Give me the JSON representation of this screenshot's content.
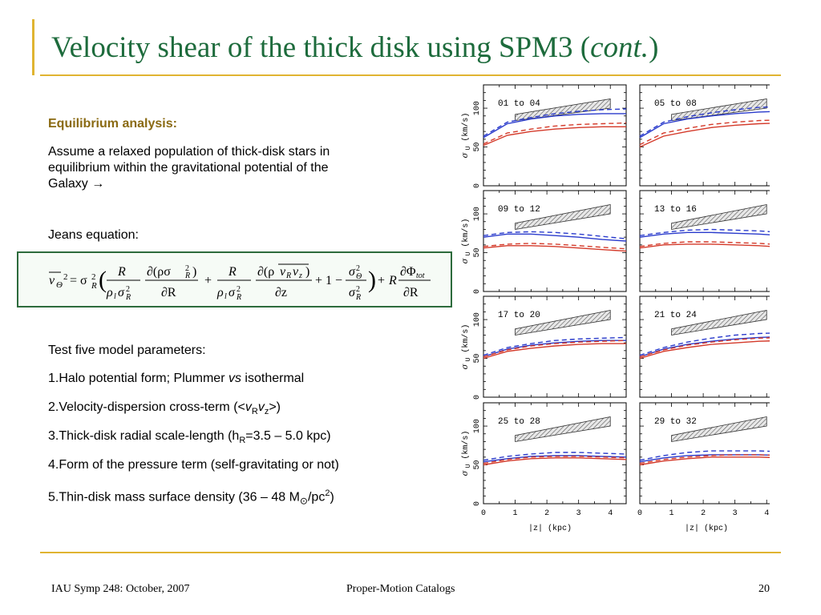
{
  "slide": {
    "title_main": "Velocity shear of the thick disk using SPM3 (",
    "title_italic": "cont.",
    "title_close": ")"
  },
  "content": {
    "heading": "Equilibrium analysis:",
    "para1_line1": "Assume a relaxed population of thick-disk stars in",
    "para1_line2": "equilibrium within the gravitational potential of the",
    "para1_line3": "Galaxy",
    "arrow": "→",
    "jeans_label": "Jeans equation:",
    "params_intro": "Test five model parameters:",
    "item1_a": "1.Halo potential form; Plummer ",
    "item1_vs": "vs",
    "item1_b": " isothermal",
    "item2_a": "2.Velocity-dispersion cross-term (<",
    "item2_v1": "v",
    "item2_s1": "R",
    "item2_v2": "v",
    "item2_s2": "z",
    "item2_b": ">)",
    "item3_a": "3.Thick-disk radial scale-length (h",
    "item3_sub": "R",
    "item3_b": "=3.5 – 5.0 kpc)",
    "item4": "4.Form of the pressure term (self-gravitating or not)",
    "item5_a": "5.Thin-disk mass surface density (36 – 48 M",
    "item5_sun": "⊙",
    "item5_b": "/pc",
    "item5_sup": "2",
    "item5_c": ")"
  },
  "equation": {
    "lhs": "v",
    "lhs_sub": "Θ",
    "eq": "= σ",
    "sub_R": "R",
    "t1_num": "R",
    "t1_den": "ρ",
    "t2_num": "∂(ρσ",
    "t2_den": "∂R",
    "plus": "+",
    "t3_num": "R",
    "t4_num": "∂(ρ",
    "t4_vRvz": "v",
    "t4_den": "∂z",
    "one": "+ 1 −",
    "t5_num": "σ",
    "t5_sub_num": "Θ",
    "t6_num": "∂Φ",
    "t6_sub": "tot",
    "t6_den": "∂R"
  },
  "footer": {
    "left": "IAU Symp 248: October, 2007",
    "center": "Proper-Motion Catalogs",
    "page": "20"
  },
  "colors": {
    "accent_line": "#e0b431",
    "title": "#1d6b3c",
    "heading": "#8a6a12",
    "box_border": "#2d6b3c",
    "series_blue": "#2a3bcc",
    "series_red": "#d43a2a",
    "band": "#9a9a9a"
  },
  "chart_data": {
    "type": "line",
    "ylabel": "σ",
    "ylabel_sub": "U",
    "ylabel_units": "(km/s)",
    "xlabel": "|z|   (kpc)",
    "xlim": [
      0,
      4.5
    ],
    "ylim": [
      0,
      130
    ],
    "xticks": [
      "0",
      "1",
      "2",
      "3",
      "4"
    ],
    "yticks": [
      "0",
      "50",
      "100"
    ],
    "panels": [
      {
        "label": "01 to 04",
        "band_lo": [
          84,
          100
        ],
        "band_hi": [
          92,
          112
        ],
        "blue_solid": [
          62,
          80,
          86,
          90,
          92,
          93,
          93
        ],
        "blue_dashed": [
          64,
          82,
          88,
          93,
          96,
          98,
          99
        ],
        "red_solid": [
          52,
          65,
          70,
          73,
          75,
          76,
          76
        ],
        "red_dashed": [
          54,
          68,
          73,
          77,
          79,
          80,
          81
        ]
      },
      {
        "label": "05 to 08",
        "band_lo": [
          84,
          100
        ],
        "band_hi": [
          92,
          112
        ],
        "blue_solid": [
          62,
          80,
          86,
          90,
          93,
          95,
          96
        ],
        "blue_dashed": [
          64,
          82,
          89,
          94,
          98,
          101,
          102
        ],
        "red_solid": [
          50,
          64,
          70,
          75,
          78,
          80,
          81
        ],
        "red_dashed": [
          53,
          68,
          74,
          79,
          82,
          84,
          85
        ]
      },
      {
        "label": "09 to 12",
        "band_lo": [
          80,
          100
        ],
        "band_hi": [
          88,
          112
        ],
        "blue_solid": [
          70,
          74,
          74,
          72,
          70,
          67,
          65
        ],
        "blue_dashed": [
          72,
          76,
          77,
          76,
          74,
          71,
          68
        ],
        "red_solid": [
          56,
          59,
          59,
          58,
          56,
          54,
          52
        ],
        "red_dashed": [
          58,
          61,
          62,
          61,
          59,
          57,
          55
        ]
      },
      {
        "label": "13 to 16",
        "band_lo": [
          80,
          100
        ],
        "band_hi": [
          88,
          112
        ],
        "blue_solid": [
          70,
          74,
          76,
          76,
          75,
          74,
          72
        ],
        "blue_dashed": [
          72,
          76,
          79,
          80,
          79,
          78,
          76
        ],
        "red_solid": [
          56,
          60,
          61,
          61,
          60,
          59,
          57
        ],
        "red_dashed": [
          58,
          62,
          64,
          64,
          63,
          62,
          60
        ]
      },
      {
        "label": "17 to 20",
        "band_lo": [
          80,
          100
        ],
        "band_hi": [
          88,
          112
        ],
        "blue_solid": [
          52,
          62,
          67,
          70,
          72,
          73,
          73
        ],
        "blue_dashed": [
          54,
          64,
          69,
          73,
          75,
          76,
          77
        ],
        "red_solid": [
          50,
          59,
          63,
          66,
          68,
          69,
          69
        ],
        "red_dashed": [
          52,
          61,
          66,
          69,
          71,
          72,
          73
        ]
      },
      {
        "label": "21 to 24",
        "band_lo": [
          80,
          100
        ],
        "band_hi": [
          88,
          112
        ],
        "blue_solid": [
          52,
          62,
          68,
          72,
          75,
          77,
          78
        ],
        "blue_dashed": [
          54,
          64,
          71,
          76,
          80,
          82,
          83
        ],
        "red_solid": [
          50,
          59,
          64,
          68,
          70,
          72,
          73
        ],
        "red_dashed": [
          52,
          61,
          67,
          71,
          74,
          76,
          77
        ]
      },
      {
        "label": "25 to 28",
        "band_lo": [
          80,
          100
        ],
        "band_hi": [
          88,
          112
        ],
        "blue_solid": [
          54,
          58,
          61,
          62,
          62,
          61,
          60
        ],
        "blue_dashed": [
          56,
          61,
          64,
          66,
          66,
          65,
          64
        ],
        "red_solid": [
          50,
          55,
          58,
          59,
          59,
          58,
          57
        ],
        "red_dashed": [
          52,
          57,
          60,
          61,
          61,
          60,
          59
        ]
      },
      {
        "label": "29 to 32",
        "band_lo": [
          80,
          100
        ],
        "band_hi": [
          88,
          112
        ],
        "blue_solid": [
          54,
          59,
          62,
          63,
          63,
          63,
          62
        ],
        "blue_dashed": [
          56,
          62,
          66,
          68,
          68,
          68,
          67
        ],
        "red_solid": [
          50,
          55,
          58,
          60,
          60,
          60,
          59
        ],
        "red_dashed": [
          52,
          57,
          60,
          62,
          63,
          63,
          62
        ]
      }
    ],
    "curve_x": [
      0,
      0.75,
      1.5,
      2.25,
      3.0,
      3.75,
      4.5
    ],
    "band_x": [
      1,
      4
    ],
    "grid": false,
    "legend": "none"
  }
}
